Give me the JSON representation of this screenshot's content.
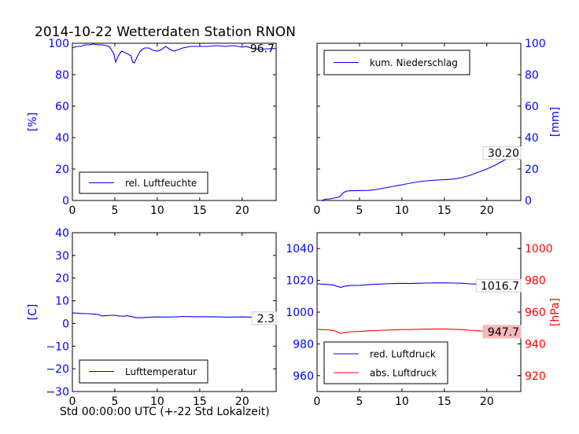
{
  "title": "2014-10-22 Wetterdaten Station RNON",
  "xlabel": "Std 00:00:00 UTC (+-22 Std Lokalzeit)",
  "colors": {
    "blue": "#0000ff",
    "red": "#ff0000",
    "black": "#000000",
    "pink": "#f4b8b8"
  },
  "chart_data": [
    {
      "id": "humidity",
      "type": "line",
      "xlim": [
        0,
        24
      ],
      "ylim": [
        0,
        100
      ],
      "xticks": [
        0,
        5,
        10,
        15,
        20
      ],
      "yticks": [
        0,
        20,
        40,
        60,
        80,
        100
      ],
      "yaxis_side": "left",
      "ylabel": "[%]",
      "ylabel_color": "#0000ff",
      "legend_position": "lower-left",
      "series": [
        {
          "name": "rel. Luftfeuchte",
          "color": "#0000ff",
          "points": [
            [
              0,
              97
            ],
            [
              0.5,
              98
            ],
            [
              1,
              98
            ],
            [
              1.5,
              99
            ],
            [
              2,
              99
            ],
            [
              2.5,
              99.5
            ],
            [
              3,
              99
            ],
            [
              3.5,
              99
            ],
            [
              4,
              98.5
            ],
            [
              4.3,
              98
            ],
            [
              4.6,
              96
            ],
            [
              4.9,
              93
            ],
            [
              5.1,
              88
            ],
            [
              5.4,
              92
            ],
            [
              5.8,
              95
            ],
            [
              6.2,
              94
            ],
            [
              6.6,
              93
            ],
            [
              6.9,
              92
            ],
            [
              7.1,
              88
            ],
            [
              7.3,
              87.5
            ],
            [
              7.6,
              91
            ],
            [
              8.0,
              95
            ],
            [
              8.5,
              97
            ],
            [
              9,
              97
            ],
            [
              9.5,
              95.5
            ],
            [
              10,
              95
            ],
            [
              10.5,
              96
            ],
            [
              11,
              98
            ],
            [
              11.5,
              96
            ],
            [
              12,
              95
            ],
            [
              12.5,
              96
            ],
            [
              13,
              97
            ],
            [
              13.5,
              97.5
            ],
            [
              14,
              98
            ],
            [
              15,
              98
            ],
            [
              16,
              98
            ],
            [
              17,
              98.5
            ],
            [
              18,
              98
            ],
            [
              19,
              98.5
            ],
            [
              20,
              97.5
            ],
            [
              20.5,
              98
            ],
            [
              21,
              97
            ],
            [
              22,
              96
            ],
            [
              23,
              96.5
            ],
            [
              24,
              96.7
            ]
          ]
        }
      ],
      "annotation": {
        "text": "96.7",
        "x": 24,
        "y": 96.7,
        "style": "plain"
      }
    },
    {
      "id": "precipitation",
      "type": "line",
      "xlim": [
        0,
        24
      ],
      "ylim": [
        0,
        100
      ],
      "xticks": [
        0,
        5,
        10,
        15,
        20
      ],
      "yticks": [
        0,
        20,
        40,
        60,
        80,
        100
      ],
      "yaxis_side": "right",
      "ylabel": "[mm]",
      "ylabel_color": "#0000ff",
      "legend_position": "upper-left",
      "series": [
        {
          "name": "kum. Niederschlag",
          "color": "#0000ff",
          "points": [
            [
              0,
              0
            ],
            [
              0.5,
              0
            ],
            [
              1,
              0.8
            ],
            [
              1.5,
              1
            ],
            [
              2,
              1.5
            ],
            [
              2.5,
              2
            ],
            [
              2.8,
              3
            ],
            [
              3.1,
              5
            ],
            [
              3.5,
              6
            ],
            [
              4,
              6.2
            ],
            [
              5,
              6.3
            ],
            [
              6,
              6.4
            ],
            [
              7,
              7
            ],
            [
              8,
              8
            ],
            [
              9,
              9
            ],
            [
              10,
              10
            ],
            [
              11,
              11
            ],
            [
              12,
              12
            ],
            [
              13,
              12.5
            ],
            [
              14,
              13
            ],
            [
              15,
              13.2
            ],
            [
              16,
              13.6
            ],
            [
              17,
              14.5
            ],
            [
              18,
              16
            ],
            [
              19,
              18
            ],
            [
              20,
              20
            ],
            [
              21,
              22.5
            ],
            [
              22,
              25.5
            ],
            [
              23,
              28
            ],
            [
              24,
              30.2
            ]
          ]
        }
      ],
      "annotation": {
        "text": "30.20",
        "x": 24,
        "y": 30.2,
        "style": "boxed"
      }
    },
    {
      "id": "temperature",
      "type": "line",
      "xlim": [
        0,
        24
      ],
      "ylim": [
        -30,
        40
      ],
      "xticks": [
        0,
        5,
        10,
        15,
        20
      ],
      "yticks": [
        -30,
        -20,
        -10,
        0,
        10,
        20,
        30,
        40
      ],
      "yaxis_side": "left",
      "ylabel": "[C]",
      "ylabel_color": "#0000ff",
      "legend_position": "lower-left",
      "series": [
        {
          "name": "Lufttemperatur",
          "color": "#0000ff",
          "points": [
            [
              0,
              4.7
            ],
            [
              1,
              4.4
            ],
            [
              2,
              4.3
            ],
            [
              3,
              4.0
            ],
            [
              3.5,
              3.3
            ],
            [
              4,
              3.5
            ],
            [
              5,
              3.6
            ],
            [
              5.5,
              3.3
            ],
            [
              6,
              3.2
            ],
            [
              6.5,
              3.4
            ],
            [
              7,
              3.0
            ],
            [
              7.5,
              2.6
            ],
            [
              8,
              2.5
            ],
            [
              9,
              2.7
            ],
            [
              10,
              2.9
            ],
            [
              11,
              2.8
            ],
            [
              12,
              2.9
            ],
            [
              13,
              3.1
            ],
            [
              14,
              3.0
            ],
            [
              15,
              3.0
            ],
            [
              16,
              3.0
            ],
            [
              17,
              2.9
            ],
            [
              18,
              2.8
            ],
            [
              19,
              2.8
            ],
            [
              20,
              2.9
            ],
            [
              21,
              2.8
            ],
            [
              22,
              2.5
            ],
            [
              23,
              2.4
            ],
            [
              24,
              2.3
            ]
          ]
        }
      ],
      "annotation": {
        "text": "2.3",
        "x": 24,
        "y": 2.3,
        "style": "boxed"
      }
    },
    {
      "id": "pressure",
      "type": "line",
      "xlim": [
        0,
        24
      ],
      "ylim": [
        950,
        1050
      ],
      "ylim_right": [
        910,
        1010
      ],
      "xticks": [
        0,
        5,
        10,
        15,
        20
      ],
      "yticks": [
        960,
        980,
        1000,
        1020,
        1040
      ],
      "yticks_right": [
        920,
        940,
        960,
        980,
        1000
      ],
      "yaxis_side": "both",
      "ylabel": "[hPa]",
      "ylabel_color": "#ff0000",
      "legend_position": "lower-left",
      "series": [
        {
          "name": "red. Luftdruck",
          "color": "#0000ff",
          "axis": "left",
          "points": [
            [
              0,
              1017.8
            ],
            [
              1,
              1017.5
            ],
            [
              2,
              1017
            ],
            [
              2.5,
              1016
            ],
            [
              2.8,
              1015.6
            ],
            [
              3.2,
              1016.3
            ],
            [
              4,
              1016.8
            ],
            [
              5,
              1016.9
            ],
            [
              6,
              1017.3
            ],
            [
              7,
              1017.6
            ],
            [
              8,
              1017.8
            ],
            [
              9,
              1018
            ],
            [
              10,
              1018.1
            ],
            [
              11,
              1018
            ],
            [
              12,
              1018.2
            ],
            [
              13,
              1018.3
            ],
            [
              14,
              1018.4
            ],
            [
              15,
              1018.4
            ],
            [
              16,
              1018.3
            ],
            [
              17,
              1018.2
            ],
            [
              18,
              1017.8
            ],
            [
              19,
              1017.5
            ],
            [
              20,
              1017
            ],
            [
              21,
              1016.8
            ],
            [
              22,
              1016.7
            ],
            [
              23,
              1016.7
            ],
            [
              24,
              1016.7
            ]
          ]
        },
        {
          "name": "abs. Luftdruck",
          "color": "#ff0000",
          "axis": "right",
          "points": [
            [
              0,
              949.2
            ],
            [
              1,
              948.9
            ],
            [
              2,
              948.4
            ],
            [
              2.5,
              947.3
            ],
            [
              2.8,
              946.6
            ],
            [
              3.2,
              947.2
            ],
            [
              4,
              947.6
            ],
            [
              5,
              947.8
            ],
            [
              6,
              948.2
            ],
            [
              7,
              948.4
            ],
            [
              8,
              948.6
            ],
            [
              9,
              948.8
            ],
            [
              10,
              949
            ],
            [
              11,
              949
            ],
            [
              12,
              949.2
            ],
            [
              13,
              949.3
            ],
            [
              14,
              949.4
            ],
            [
              15,
              949.4
            ],
            [
              16,
              949.2
            ],
            [
              17,
              949
            ],
            [
              18,
              948.6
            ],
            [
              19,
              948.2
            ],
            [
              20,
              947.8
            ],
            [
              21,
              947.7
            ],
            [
              22,
              947.7
            ],
            [
              23,
              947.7
            ],
            [
              24,
              947.7
            ]
          ]
        }
      ],
      "annotation": {
        "text": "1016.7",
        "x": 24,
        "y": 1016.7,
        "style": "boxed"
      },
      "annotation2": {
        "text": "947.7",
        "x": 24,
        "y": 947.7,
        "style": "pinkbox"
      }
    }
  ]
}
